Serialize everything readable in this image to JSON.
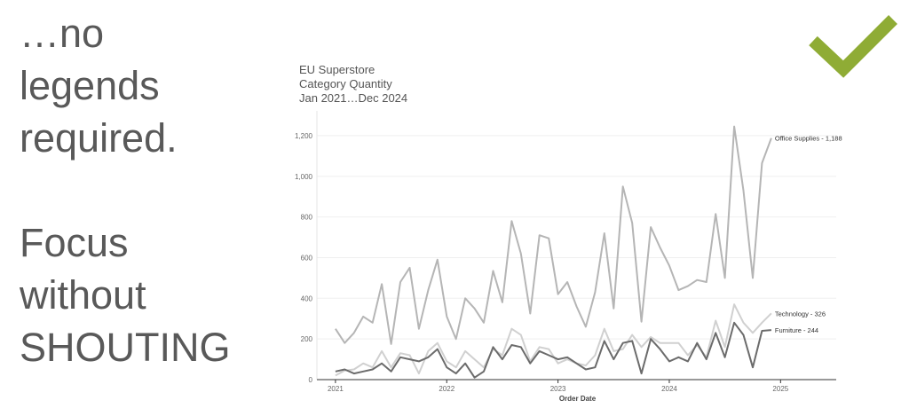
{
  "slide": {
    "lines": [
      "…no",
      "legends",
      "required.",
      "",
      "Focus",
      "without",
      "SHOUTING"
    ]
  },
  "icons": {
    "checkmark": "checkmark-icon",
    "checkmark_color": "#8fac35"
  },
  "chart_data": {
    "type": "line",
    "title": [
      "EU Superstore",
      "Category Quantity",
      "Jan 2021…Dec 2024"
    ],
    "xlabel": "Order Date",
    "ylabel": "",
    "x_range": [
      "2020-11",
      "2025-07"
    ],
    "ylim": [
      0,
      1300
    ],
    "x_ticks": [
      "2021",
      "2022",
      "2023",
      "2024",
      "2025"
    ],
    "y_ticks": [
      0,
      200,
      400,
      600,
      800,
      1000,
      1200
    ],
    "y_tick_labels": [
      "0",
      "200",
      "400",
      "600",
      "800",
      "1,000",
      "1,200"
    ],
    "grid": true,
    "legend": "none",
    "months_start": "2021-01",
    "series": [
      {
        "name": "Office Supplies",
        "label": "Office Supplies - 1,188",
        "color": "#b5b5b5",
        "values": [
          250,
          180,
          230,
          310,
          280,
          470,
          175,
          480,
          550,
          250,
          440,
          590,
          310,
          200,
          400,
          350,
          280,
          535,
          380,
          780,
          620,
          325,
          710,
          695,
          420,
          480,
          360,
          260,
          430,
          720,
          350,
          950,
          770,
          285,
          750,
          650,
          560,
          440,
          460,
          490,
          480,
          815,
          500,
          1245,
          930,
          500,
          1065,
          1188
        ]
      },
      {
        "name": "Technology",
        "label": "Technology - 326",
        "color": "#d0d0d0",
        "values": [
          20,
          45,
          50,
          80,
          60,
          140,
          60,
          130,
          120,
          30,
          140,
          180,
          90,
          60,
          140,
          100,
          60,
          150,
          120,
          250,
          220,
          90,
          160,
          150,
          80,
          100,
          80,
          70,
          120,
          250,
          140,
          150,
          220,
          160,
          210,
          180,
          180,
          180,
          120,
          170,
          110,
          290,
          160,
          370,
          280,
          230,
          280,
          326
        ]
      },
      {
        "name": "Furniture",
        "label": "Furniture - 244",
        "color": "#6b6b6b",
        "values": [
          40,
          50,
          30,
          40,
          50,
          80,
          40,
          110,
          100,
          90,
          110,
          150,
          60,
          30,
          80,
          10,
          40,
          160,
          100,
          170,
          160,
          80,
          140,
          120,
          100,
          110,
          80,
          50,
          60,
          190,
          100,
          180,
          190,
          30,
          200,
          150,
          90,
          110,
          90,
          180,
          100,
          230,
          110,
          280,
          220,
          60,
          240,
          244
        ]
      }
    ]
  }
}
